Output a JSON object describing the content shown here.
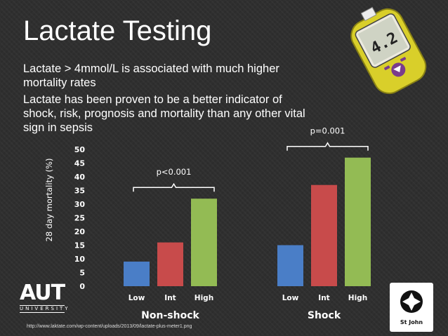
{
  "slide": {
    "title": "Lactate Testing",
    "bullets": [
      "Lactate > 4mmol/L is associated with much higher mortality rates",
      "Lactate has been proven to be a better indicator of shock, risk, prognosis and mortality than any other vital sign in sepsis"
    ],
    "source": "http://www.laktate.com/wp-content/uploads/2013/09/lactate-plus-meter1.png"
  },
  "logos": {
    "aut_word": "AUT",
    "aut_sub": "UNIVERSITY",
    "stjohn": "St John"
  },
  "device": {
    "display_reading": "4.2"
  },
  "colors": {
    "low": "#4a7ec7",
    "int": "#c84b4b",
    "high": "#93bb54"
  },
  "chart_data": {
    "type": "bar",
    "ylabel": "28 day mortality (%)",
    "ylim": [
      0,
      50
    ],
    "yticks": [
      "0",
      "5",
      "10",
      "15",
      "20",
      "25",
      "30",
      "35",
      "40",
      "45",
      "50"
    ],
    "categories": [
      "Low",
      "Int",
      "High"
    ],
    "groups": [
      {
        "name": "Non-shock",
        "values": [
          9,
          16,
          32
        ],
        "annotation": "p<0.001"
      },
      {
        "name": "Shock",
        "values": [
          15,
          37,
          47
        ],
        "annotation": "p=0.001"
      }
    ]
  }
}
